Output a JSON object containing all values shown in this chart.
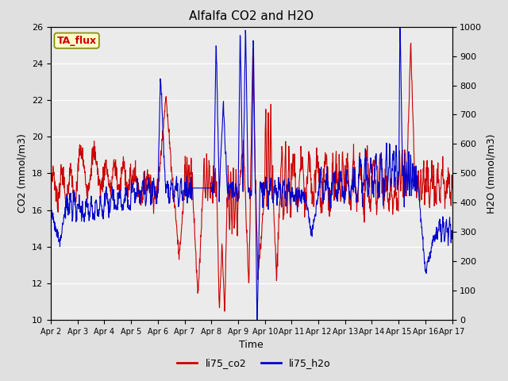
{
  "title": "Alfalfa CO2 and H2O",
  "xlabel": "Time",
  "ylabel_left": "CO2 (mmol/m3)",
  "ylabel_right": "H2O (mmol/m3)",
  "ylim_left": [
    10,
    26
  ],
  "ylim_right": [
    0,
    1000
  ],
  "yticks_left": [
    10,
    12,
    14,
    16,
    18,
    20,
    22,
    24,
    26
  ],
  "yticks_right": [
    0,
    100,
    200,
    300,
    400,
    500,
    600,
    700,
    800,
    900,
    1000
  ],
  "xtick_labels": [
    "Apr 2",
    "Apr 3",
    "Apr 4",
    "Apr 5",
    "Apr 6",
    "Apr 7",
    "Apr 8",
    "Apr 9",
    "Apr 10",
    "Apr 11",
    "Apr 12",
    "Apr 13",
    "Apr 14",
    "Apr 15",
    "Apr 16",
    "Apr 17"
  ],
  "co2_color": "#cc0000",
  "h2o_color": "#0000cc",
  "bg_color": "#e0e0e0",
  "plot_bg_color": "#ebebeb",
  "legend_label_co2": "li75_co2",
  "legend_label_h2o": "li75_h2o",
  "annotation_text": "TA_flux",
  "annotation_color": "#cc0000",
  "annotation_bg": "#ffffcc",
  "line_width": 0.8,
  "n_points": 1500
}
